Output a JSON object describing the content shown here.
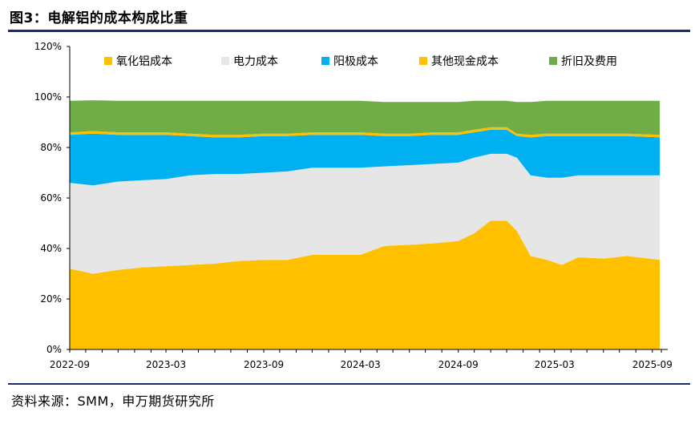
{
  "title": "图3：电解铝的成本构成比重",
  "source": "资料来源：SMM，申万期货研究所",
  "chart_data": {
    "type": "area",
    "stacked": true,
    "yticks": [
      "0%",
      "20%",
      "40%",
      "60%",
      "80%",
      "100%",
      "120%"
    ],
    "ylim": [
      0,
      120
    ],
    "xticks": [
      "2022-09",
      "2023-03",
      "2023-09",
      "2024-03",
      "2024-09",
      "2025-03",
      "2025-09"
    ],
    "xlim": [
      "2022-09-01",
      "2025-09-30"
    ],
    "legend_position": "top",
    "x": [
      "2022-09-01",
      "2022-10-15",
      "2022-12-01",
      "2023-01-15",
      "2023-03-01",
      "2023-04-15",
      "2023-06-01",
      "2023-07-15",
      "2023-09-01",
      "2023-10-15",
      "2023-12-01",
      "2024-01-15",
      "2024-03-01",
      "2024-04-15",
      "2024-06-01",
      "2024-07-15",
      "2024-09-01",
      "2024-10-01",
      "2024-11-01",
      "2024-12-01",
      "2024-12-20",
      "2025-01-15",
      "2025-02-15",
      "2025-03-15",
      "2025-04-15",
      "2025-06-01",
      "2025-07-15",
      "2025-09-15"
    ],
    "series": [
      {
        "name": "氧化铝成本",
        "color": "#FFC000",
        "values": [
          32,
          30,
          31.5,
          32.5,
          33,
          33.5,
          34,
          35,
          35.5,
          35.5,
          37.5,
          37.5,
          37.5,
          41,
          41.5,
          42,
          43,
          46,
          51,
          51,
          47,
          37,
          35.5,
          33.5,
          36.5,
          36,
          37,
          35.5
        ]
      },
      {
        "name": "电力成本",
        "color": "#E6E6E6",
        "values": [
          34,
          35,
          35,
          34.5,
          34.5,
          35.5,
          35.5,
          34.5,
          34.5,
          35,
          34.5,
          34.5,
          34.5,
          31.5,
          31.5,
          31.5,
          31,
          30,
          26.5,
          26.5,
          29,
          32,
          32.5,
          34.5,
          32.5,
          33,
          32,
          33.5
        ]
      },
      {
        "name": "阳极成本",
        "color": "#00B0F0",
        "values": [
          19,
          20.5,
          18.5,
          18,
          17.5,
          15.5,
          14.5,
          14.5,
          14.5,
          14,
          13,
          13,
          13,
          12,
          11.5,
          11.5,
          11,
          10,
          9.5,
          9.5,
          8.5,
          15,
          16.5,
          16.5,
          15.5,
          15.5,
          15.5,
          15
        ]
      },
      {
        "name": "其他现金成本",
        "color": "#FFC000",
        "values": [
          1,
          1,
          1,
          1,
          1,
          1,
          1,
          1,
          1,
          1,
          1,
          1,
          1,
          1,
          1,
          1,
          1,
          1,
          1,
          1,
          1,
          1,
          1,
          1,
          1,
          1,
          1,
          1
        ]
      },
      {
        "name": "折旧及费用",
        "color": "#70AD47",
        "values": [
          12.5,
          12.2,
          12.5,
          12.5,
          12.5,
          13,
          13.5,
          13.5,
          13,
          13,
          12.5,
          12.5,
          12.5,
          12.5,
          12.5,
          12,
          12,
          11.5,
          10.5,
          10.5,
          12.5,
          13,
          13,
          13,
          13,
          13,
          13,
          13.5
        ]
      }
    ]
  }
}
